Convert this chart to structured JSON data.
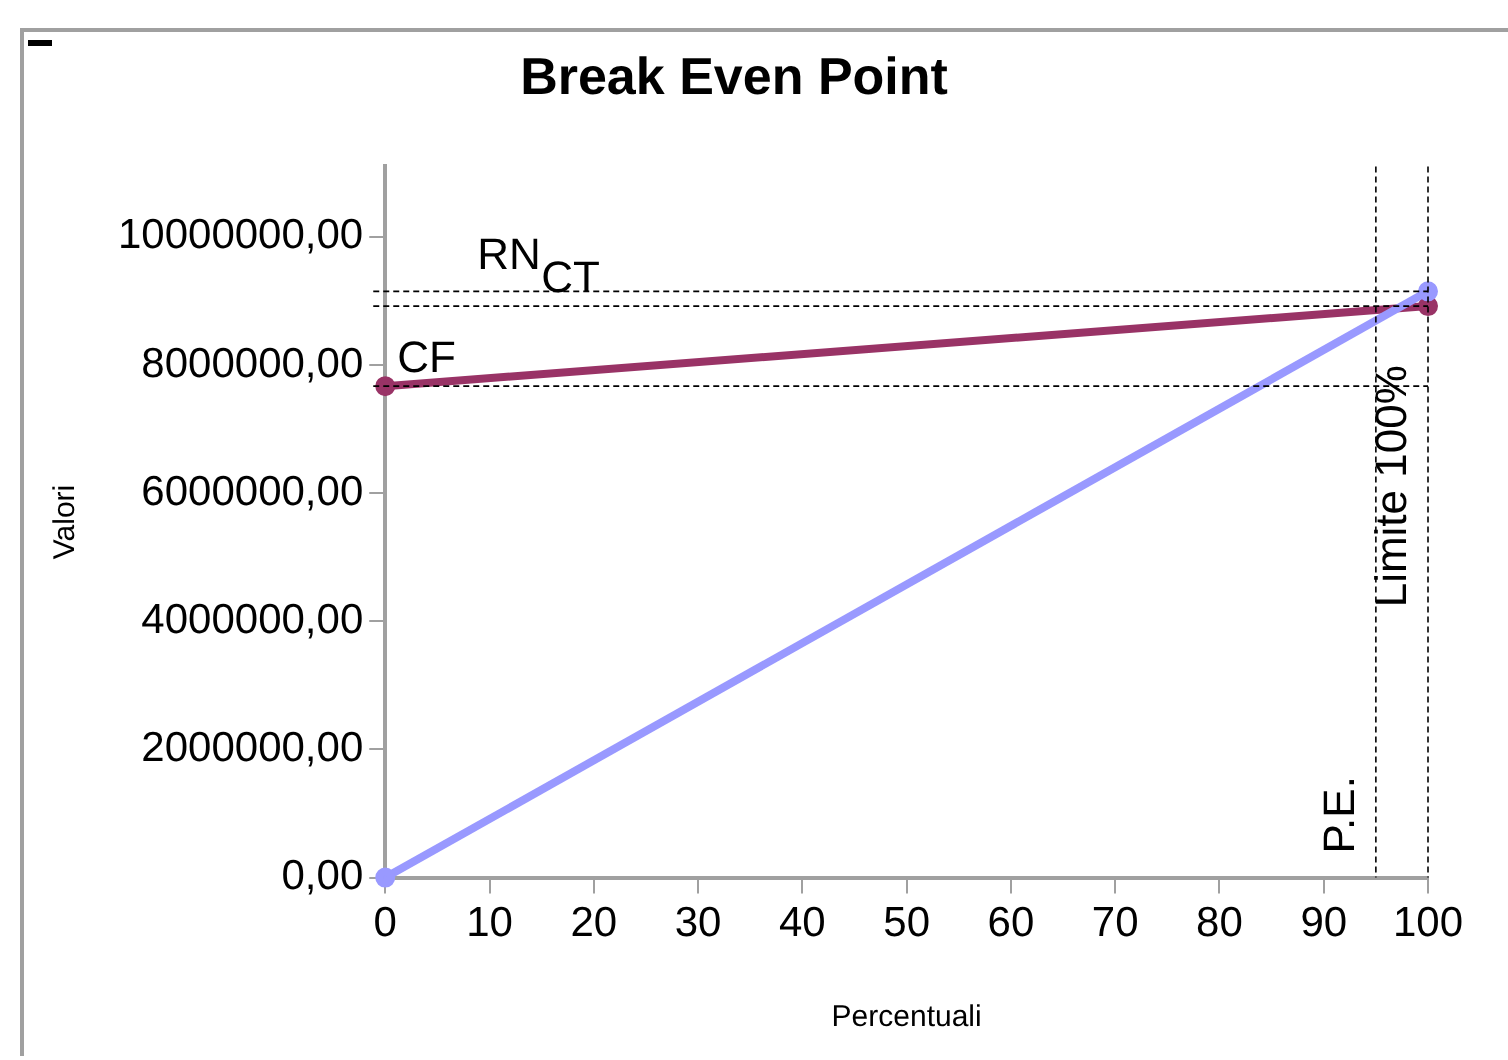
{
  "chart_data": {
    "type": "line",
    "title": "Break Even Point",
    "xlabel": "Percentuali",
    "ylabel": "Valori",
    "series": [
      {
        "color": "#9999ff",
        "values": [
          0,
          9150000
        ]
      },
      {
        "color": "#993366",
        "values": [
          7670000,
          8920000
        ]
      }
    ],
    "x": [
      0,
      100
    ],
    "xlim": [
      0,
      100
    ],
    "xticks": [
      0,
      10,
      20,
      30,
      40,
      50,
      60,
      70,
      80,
      90,
      100
    ],
    "ylim": [
      0,
      11100000
    ],
    "yticks": [
      {
        "value": 0,
        "label": "0,00"
      },
      {
        "value": 2000000,
        "label": "2000000,00"
      },
      {
        "value": 4000000,
        "label": "4000000,00"
      },
      {
        "value": 6000000,
        "label": "6000000,00"
      },
      {
        "value": 8000000,
        "label": "8000000,00"
      },
      {
        "value": 10000000,
        "label": "10000000,00"
      }
    ],
    "ref_lines": [
      {
        "axis": "y",
        "value": 7670000,
        "label": "CF",
        "color": "#000000",
        "line_style": "dashed"
      },
      {
        "axis": "y",
        "value": 9150000,
        "label": "RN",
        "color": "#000000",
        "line_style": "dashed"
      },
      {
        "axis": "y",
        "value": 8920000,
        "label": "CT",
        "color": "#000000",
        "line_style": "dashed"
      },
      {
        "axis": "x",
        "value": 95,
        "label": "P.E.",
        "color": "#000000",
        "line_style": "dashed"
      },
      {
        "axis": "x",
        "value": 100,
        "label": "Limite 100%",
        "color": "#000000",
        "line_style": "dashed"
      }
    ],
    "grid": false,
    "legend": false,
    "marker": "circle",
    "line_style": "solid"
  }
}
